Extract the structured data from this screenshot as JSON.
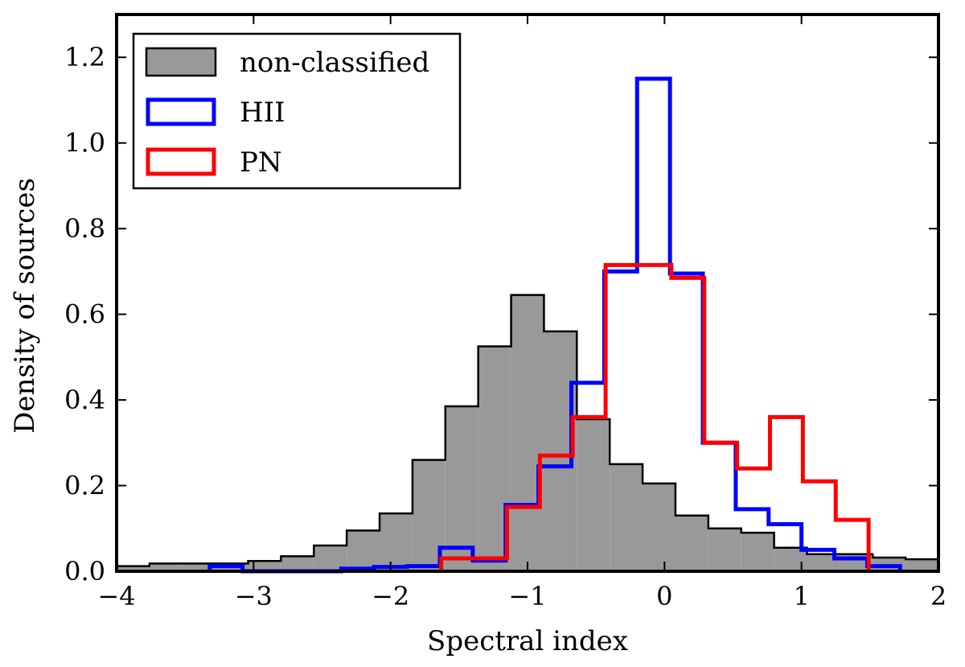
{
  "chart_data": {
    "type": "histogram",
    "xlabel": "Spectral index",
    "ylabel": "Density of sources",
    "xlim": [
      -4,
      2
    ],
    "ylim": [
      0,
      1.3
    ],
    "xticks": [
      -4,
      -3,
      -2,
      -1,
      0,
      1,
      2
    ],
    "xtick_labels": [
      "−4",
      "−3",
      "−2",
      "−1",
      "0",
      "1",
      "2"
    ],
    "yticks": [
      0.0,
      0.2,
      0.4,
      0.6,
      0.8,
      1.0,
      1.2
    ],
    "ytick_labels": [
      "0.0",
      "0.2",
      "0.4",
      "0.6",
      "0.8",
      "1.0",
      "1.2"
    ],
    "legend_position": "top-left",
    "series": [
      {
        "name": "non-classified",
        "style": "filled",
        "fill": "#999999",
        "edge": "#000000",
        "bin_edges": [
          -4.0,
          -3.76,
          -3.52,
          -3.28,
          -3.04,
          -2.8,
          -2.56,
          -2.32,
          -2.08,
          -1.84,
          -1.6,
          -1.36,
          -1.12,
          -0.88,
          -0.64,
          -0.4,
          -0.16,
          0.08,
          0.32,
          0.56,
          0.8,
          1.04,
          1.28,
          1.52,
          1.76,
          2.0
        ],
        "values": [
          0.012,
          0.018,
          0.018,
          0.018,
          0.024,
          0.035,
          0.06,
          0.095,
          0.135,
          0.26,
          0.385,
          0.525,
          0.645,
          0.56,
          0.355,
          0.25,
          0.205,
          0.13,
          0.1,
          0.09,
          0.055,
          0.04,
          0.04,
          0.032,
          0.028
        ]
      },
      {
        "name": "HII",
        "style": "step",
        "color": "#0000ff",
        "bin_edges": [
          -3.32,
          -3.08,
          -2.84,
          -2.6,
          -2.36,
          -2.12,
          -1.88,
          -1.64,
          -1.4,
          -1.16,
          -0.92,
          -0.68,
          -0.44,
          -0.2,
          0.04,
          0.28,
          0.52,
          0.76,
          1.0,
          1.24,
          1.48,
          1.72
        ],
        "values": [
          0.012,
          0.0,
          0.0,
          0.0,
          0.006,
          0.01,
          0.012,
          0.055,
          0.025,
          0.155,
          0.245,
          0.44,
          0.7,
          1.15,
          0.695,
          0.3,
          0.145,
          0.11,
          0.05,
          0.03,
          0.012
        ]
      },
      {
        "name": "PN",
        "style": "step",
        "color": "#ff0000",
        "bin_edges": [
          -1.63,
          -1.39,
          -1.15,
          -0.91,
          -0.67,
          -0.43,
          -0.19,
          0.05,
          0.29,
          0.53,
          0.77,
          1.01,
          1.25,
          1.49
        ],
        "values": [
          0.03,
          0.03,
          0.15,
          0.27,
          0.36,
          0.715,
          0.715,
          0.685,
          0.3,
          0.24,
          0.36,
          0.21,
          0.12
        ]
      }
    ]
  }
}
